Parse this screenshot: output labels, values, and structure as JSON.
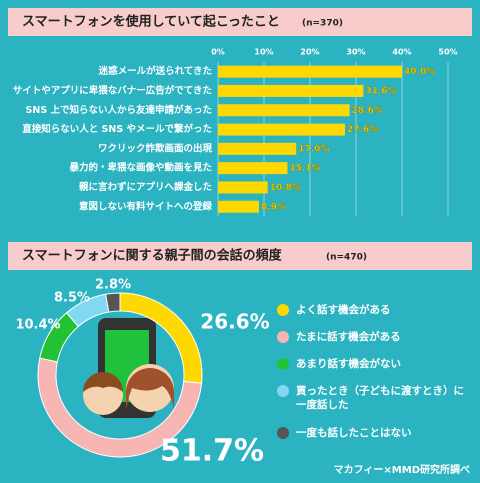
{
  "chart_data": [
    {
      "type": "hbar",
      "title": "スマートフォンを使用していて起こったこと",
      "subtitle": "(n=370)",
      "categories": [
        "迷惑メールが送られてきた",
        "サイトやアプリに卑猥なバナー広告がでてきた",
        "SNS 上で知らない人から友達申請があった",
        "直接知らない人と SNS やメールで繋がった",
        "ワクリック詐欺画面の出現",
        "暴力的・卑猥な画像や動画を見た",
        "親に言わずにアプリへ課金した",
        "意図しない有料サイトへの登録"
      ],
      "values": [
        40.0,
        31.6,
        28.6,
        27.6,
        17.0,
        15.1,
        10.8,
        8.9
      ],
      "value_labels": [
        "40.0%",
        "31.6%",
        "28.6%",
        "27.6%",
        "17.0%",
        "15.1%",
        "10.8%",
        "8.9%"
      ],
      "color": "#ffd800",
      "xlim": [
        0,
        50
      ],
      "xticks": [
        {
          "value": 0,
          "label": "0%"
        },
        {
          "value": 10,
          "label": "10%"
        },
        {
          "value": 20,
          "label": "20%"
        },
        {
          "value": 30,
          "label": "30%"
        },
        {
          "value": 40,
          "label": "40%"
        },
        {
          "value": 50,
          "label": "50%"
        }
      ],
      "grid": true
    },
    {
      "type": "donut",
      "title": "スマートフォンに関する親子間の会話の頻度",
      "subtitle": "(n=470)",
      "categories": [
        "よく話す機会がある",
        "たまに話す機会がある",
        "あまり話す機会がない",
        "買ったとき（子どもに渡すとき）に一度話した",
        "一度も話したことはない"
      ],
      "values": [
        26.6,
        51.7,
        10.4,
        8.5,
        2.8
      ],
      "value_labels": [
        "26.6%",
        "51.7%",
        "10.4%",
        "8.5%",
        "2.8%"
      ],
      "colors": [
        "#ffd800",
        "#f7b5b3",
        "#23c234",
        "#80d8f3",
        "#555555"
      ],
      "source": "マカフィー×MMD研究所調べ"
    }
  ]
}
